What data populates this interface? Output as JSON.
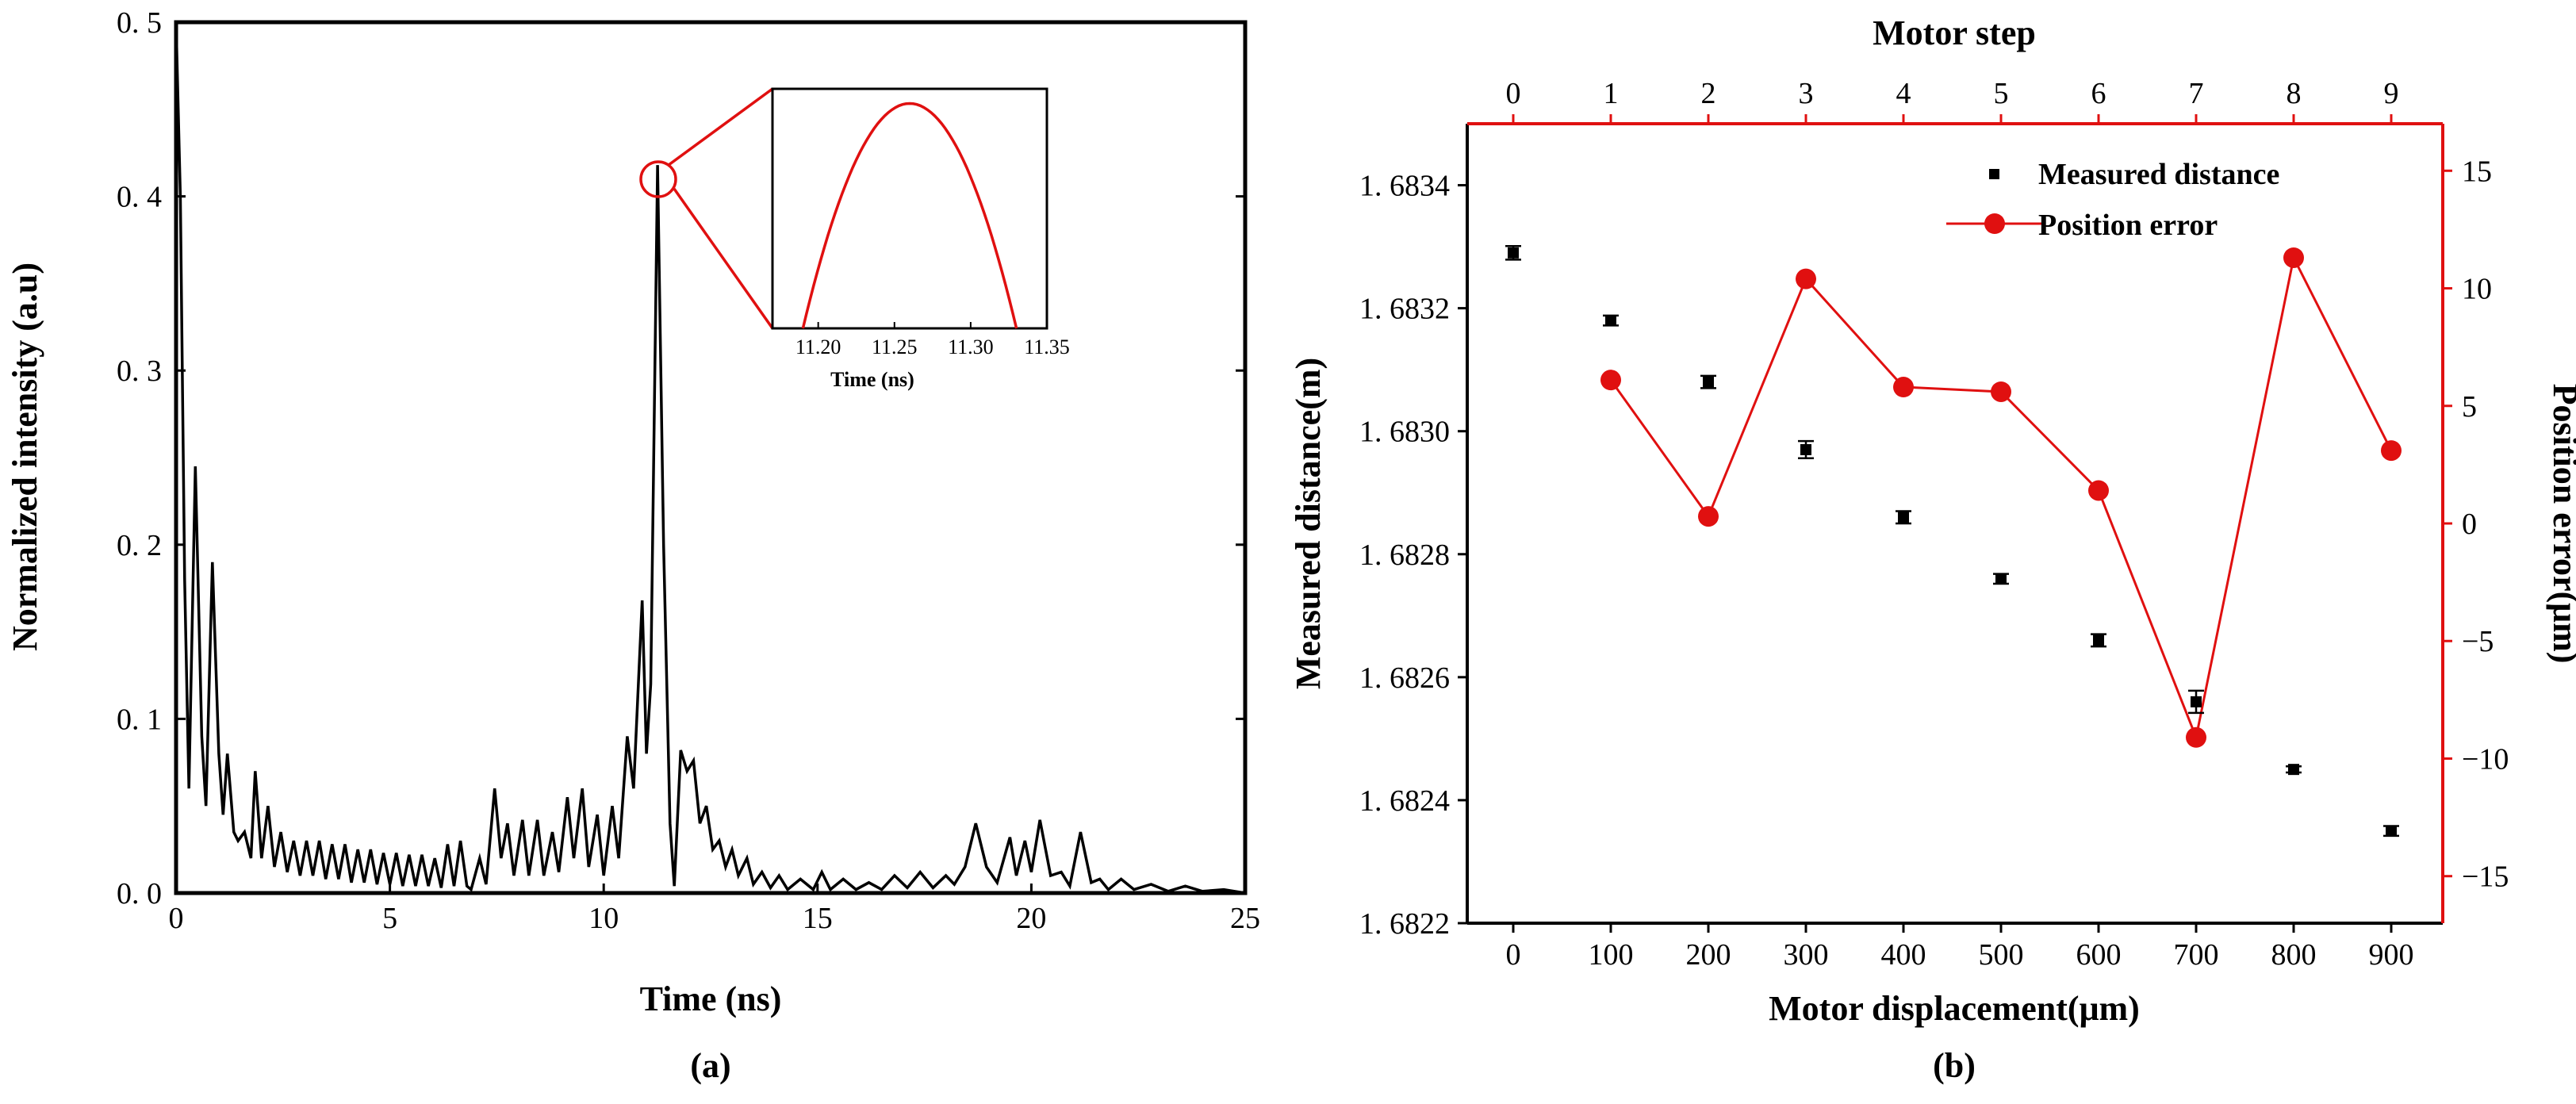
{
  "panels": {
    "a_label": "(a)",
    "b_label": "(b)"
  },
  "colors": {
    "black": "#000000",
    "red": "#e01010"
  },
  "chart_data": [
    {
      "type": "line",
      "panel": "a",
      "title": "",
      "xlabel": "Time (ns)",
      "ylabel": "Normalized intensity (a.u)",
      "xlim": [
        0,
        25
      ],
      "ylim": [
        0,
        0.5
      ],
      "xticks": [
        0,
        5,
        10,
        15,
        20,
        25
      ],
      "xtick_labels": [
        "0",
        "5",
        "10",
        "15",
        "20",
        "25"
      ],
      "yticks": [
        0,
        0.1,
        0.2,
        0.3,
        0.4,
        0.5
      ],
      "ytick_labels": [
        "0. 0",
        "0. 1",
        "0. 2",
        "0. 3",
        "0. 4",
        "0. 5"
      ],
      "series": [
        {
          "name": "intensity",
          "color": "#000000",
          "points": [
            [
              0.0,
              0.5
            ],
            [
              0.1,
              0.4
            ],
            [
              0.2,
              0.18
            ],
            [
              0.3,
              0.06
            ],
            [
              0.45,
              0.245
            ],
            [
              0.6,
              0.09
            ],
            [
              0.7,
              0.05
            ],
            [
              0.85,
              0.19
            ],
            [
              1.0,
              0.08
            ],
            [
              1.1,
              0.045
            ],
            [
              1.2,
              0.08
            ],
            [
              1.35,
              0.035
            ],
            [
              1.45,
              0.03
            ],
            [
              1.6,
              0.035
            ],
            [
              1.75,
              0.02
            ],
            [
              1.85,
              0.07
            ],
            [
              2.0,
              0.02
            ],
            [
              2.15,
              0.05
            ],
            [
              2.3,
              0.015
            ],
            [
              2.45,
              0.035
            ],
            [
              2.6,
              0.012
            ],
            [
              2.75,
              0.03
            ],
            [
              2.9,
              0.01
            ],
            [
              3.05,
              0.03
            ],
            [
              3.2,
              0.01
            ],
            [
              3.35,
              0.03
            ],
            [
              3.5,
              0.008
            ],
            [
              3.65,
              0.028
            ],
            [
              3.8,
              0.008
            ],
            [
              3.95,
              0.028
            ],
            [
              4.1,
              0.006
            ],
            [
              4.25,
              0.025
            ],
            [
              4.4,
              0.006
            ],
            [
              4.55,
              0.025
            ],
            [
              4.7,
              0.005
            ],
            [
              4.85,
              0.023
            ],
            [
              5.0,
              0.005
            ],
            [
              5.15,
              0.023
            ],
            [
              5.3,
              0.004
            ],
            [
              5.45,
              0.022
            ],
            [
              5.6,
              0.004
            ],
            [
              5.75,
              0.022
            ],
            [
              5.9,
              0.004
            ],
            [
              6.05,
              0.02
            ],
            [
              6.2,
              0.003
            ],
            [
              6.35,
              0.028
            ],
            [
              6.5,
              0.004
            ],
            [
              6.65,
              0.03
            ],
            [
              6.8,
              0.004
            ],
            [
              6.9,
              0.002
            ],
            [
              7.1,
              0.02
            ],
            [
              7.25,
              0.005
            ],
            [
              7.45,
              0.06
            ],
            [
              7.6,
              0.02
            ],
            [
              7.75,
              0.04
            ],
            [
              7.9,
              0.01
            ],
            [
              8.1,
              0.042
            ],
            [
              8.25,
              0.01
            ],
            [
              8.45,
              0.042
            ],
            [
              8.6,
              0.01
            ],
            [
              8.8,
              0.035
            ],
            [
              8.95,
              0.012
            ],
            [
              9.15,
              0.055
            ],
            [
              9.3,
              0.02
            ],
            [
              9.5,
              0.06
            ],
            [
              9.65,
              0.015
            ],
            [
              9.85,
              0.045
            ],
            [
              10.0,
              0.01
            ],
            [
              10.2,
              0.05
            ],
            [
              10.35,
              0.02
            ],
            [
              10.55,
              0.09
            ],
            [
              10.7,
              0.06
            ],
            [
              10.9,
              0.168
            ],
            [
              11.0,
              0.08
            ],
            [
              11.1,
              0.12
            ],
            [
              11.26,
              0.418
            ],
            [
              11.4,
              0.2
            ],
            [
              11.55,
              0.04
            ],
            [
              11.65,
              0.004
            ],
            [
              11.8,
              0.082
            ],
            [
              11.95,
              0.07
            ],
            [
              12.1,
              0.076
            ],
            [
              12.25,
              0.04
            ],
            [
              12.4,
              0.05
            ],
            [
              12.55,
              0.025
            ],
            [
              12.7,
              0.03
            ],
            [
              12.85,
              0.015
            ],
            [
              13.0,
              0.025
            ],
            [
              13.15,
              0.01
            ],
            [
              13.35,
              0.02
            ],
            [
              13.5,
              0.005
            ],
            [
              13.7,
              0.012
            ],
            [
              13.9,
              0.003
            ],
            [
              14.1,
              0.01
            ],
            [
              14.3,
              0.002
            ],
            [
              14.6,
              0.008
            ],
            [
              14.9,
              0.002
            ],
            [
              15.1,
              0.012
            ],
            [
              15.3,
              0.002
            ],
            [
              15.6,
              0.008
            ],
            [
              15.9,
              0.002
            ],
            [
              16.2,
              0.006
            ],
            [
              16.5,
              0.002
            ],
            [
              16.8,
              0.01
            ],
            [
              17.1,
              0.003
            ],
            [
              17.4,
              0.012
            ],
            [
              17.7,
              0.003
            ],
            [
              18.0,
              0.01
            ],
            [
              18.2,
              0.005
            ],
            [
              18.45,
              0.015
            ],
            [
              18.7,
              0.04
            ],
            [
              18.95,
              0.015
            ],
            [
              19.2,
              0.006
            ],
            [
              19.5,
              0.032
            ],
            [
              19.65,
              0.01
            ],
            [
              19.85,
              0.03
            ],
            [
              20.0,
              0.012
            ],
            [
              20.2,
              0.042
            ],
            [
              20.45,
              0.01
            ],
            [
              20.7,
              0.012
            ],
            [
              20.9,
              0.004
            ],
            [
              21.15,
              0.035
            ],
            [
              21.4,
              0.006
            ],
            [
              21.6,
              0.008
            ],
            [
              21.8,
              0.002
            ],
            [
              22.1,
              0.008
            ],
            [
              22.4,
              0.002
            ],
            [
              22.8,
              0.005
            ],
            [
              23.2,
              0.001
            ],
            [
              23.6,
              0.004
            ],
            [
              24.0,
              0.001
            ],
            [
              24.5,
              0.002
            ],
            [
              25.0,
              0.0
            ]
          ]
        }
      ],
      "inset": {
        "xlabel": "Time (ns)",
        "xlim": [
          11.17,
          11.35
        ],
        "xticks": [
          11.2,
          11.25,
          11.3,
          11.35
        ],
        "xtick_labels": [
          "11.20",
          "11.25",
          "11.30",
          "11.35"
        ],
        "peak": [
          11.26,
          0.418
        ],
        "curve_points": [
          [
            11.19,
            0.395
          ],
          [
            11.2,
            0.401
          ],
          [
            11.22,
            0.41
          ],
          [
            11.24,
            0.416
          ],
          [
            11.26,
            0.418
          ],
          [
            11.28,
            0.416
          ],
          [
            11.3,
            0.41
          ],
          [
            11.32,
            0.401
          ],
          [
            11.33,
            0.395
          ]
        ],
        "ylim": [
          0.395,
          0.4195
        ]
      }
    },
    {
      "type": "scatter",
      "panel": "b",
      "title": "",
      "xlabel": "Motor displacement(μm)",
      "ylabel": "Measured distance(m)",
      "y2label": "Position error(μm)",
      "top_xlabel": "Motor step",
      "categories": [
        "0",
        "100",
        "200",
        "300",
        "400",
        "500",
        "600",
        "700",
        "800",
        "900"
      ],
      "top_categories": [
        "0",
        "1",
        "2",
        "3",
        "4",
        "5",
        "6",
        "7",
        "8",
        "9"
      ],
      "ylim": [
        1.6822,
        1.6835
      ],
      "yticks": [
        1.6822,
        1.6824,
        1.6826,
        1.6828,
        1.683,
        1.6832,
        1.6834
      ],
      "ytick_labels": [
        "1. 6822",
        "1. 6824",
        "1. 6826",
        "1. 6828",
        "1. 6830",
        "1. 6832",
        "1. 6834"
      ],
      "y2lim": [
        -17,
        17
      ],
      "y2ticks": [
        -15,
        -10,
        -5,
        0,
        5,
        10,
        15
      ],
      "y2tick_labels": [
        "−15",
        "−10",
        "−5",
        "0",
        "5",
        "10",
        "15"
      ],
      "legend": [
        "Measured distance",
        "Position error"
      ],
      "series": [
        {
          "name": "Measured distance",
          "color": "#000000",
          "values": [
            1.68329,
            1.68318,
            1.68308,
            1.68297,
            1.68286,
            1.68276,
            1.68266,
            1.68256,
            1.68245,
            1.68235
          ],
          "errors": [
            1.1e-05,
            8e-06,
            1e-05,
            1.4e-05,
            1e-05,
            8e-06,
            1e-05,
            1.8e-05,
            5e-06,
            8e-06
          ]
        },
        {
          "name": "Position error",
          "color": "#e01010",
          "axis": "right",
          "x_indices": [
            1,
            2,
            3,
            4,
            5,
            6,
            7,
            8,
            9
          ],
          "values": [
            6.1,
            0.3,
            10.4,
            5.8,
            5.6,
            1.4,
            -9.1,
            11.3,
            3.1
          ]
        }
      ]
    }
  ]
}
